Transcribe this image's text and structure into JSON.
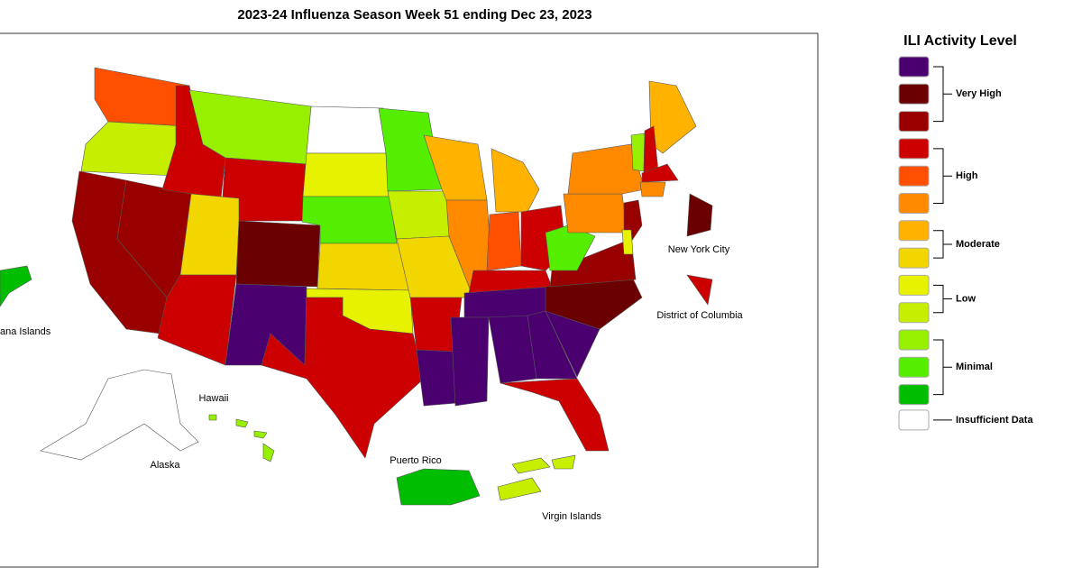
{
  "title": "2023-24 Influenza Season Week 51 ending Dec 23, 2023",
  "map_labels": {
    "new_york_city": "New York City",
    "district_of_columbia": "District of Columbia",
    "mariana": "ana Islands",
    "hawaii": "Hawaii",
    "alaska": "Alaska",
    "puerto_rico": "Puerto Rico",
    "virgin_islands": "Virgin Islands"
  },
  "legend": {
    "title": "ILI Activity Level",
    "colors": [
      "#4b0070",
      "#6b0000",
      "#990000",
      "#cc0000",
      "#ff5000",
      "#ff8a00",
      "#ffb300",
      "#f2d600",
      "#e6f200",
      "#c6ef00",
      "#97f000",
      "#55ee00",
      "#00bd00",
      "#ffffff"
    ],
    "groups": [
      {
        "label": "Very High",
        "from": 0,
        "to": 2
      },
      {
        "label": "High",
        "from": 3,
        "to": 5
      },
      {
        "label": "Moderate",
        "from": 6,
        "to": 7
      },
      {
        "label": "Low",
        "from": 8,
        "to": 9
      },
      {
        "label": "Minimal",
        "from": 10,
        "to": 12
      },
      {
        "label": "Insufficient Data",
        "from": 13,
        "to": 13
      }
    ]
  }
}
